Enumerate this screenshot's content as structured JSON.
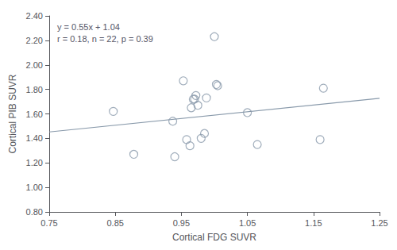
{
  "chart_data": {
    "type": "scatter",
    "xlabel": "Cortical FDG SUVR",
    "ylabel": "Cortical PIB SUVR",
    "annotations": [
      "y = 0.55x + 1.04",
      "r = 0.18, n = 22, p = 0.39"
    ],
    "series": [
      {
        "type": "scatter",
        "marker": "open circle",
        "color": "#8899aa",
        "x": [
          0.847,
          0.878,
          0.937,
          0.94,
          0.953,
          0.958,
          0.963,
          0.965,
          0.968,
          0.97,
          0.972,
          0.975,
          0.98,
          0.985,
          0.988,
          1.0,
          1.003,
          1.005,
          1.05,
          1.065,
          1.16,
          1.165
        ],
        "values": [
          1.62,
          1.27,
          1.54,
          1.25,
          1.87,
          1.39,
          1.34,
          1.65,
          1.72,
          1.72,
          1.75,
          1.67,
          1.4,
          1.44,
          1.73,
          2.23,
          1.84,
          1.83,
          1.61,
          1.35,
          1.39,
          1.81
        ]
      },
      {
        "type": "line",
        "line_style": "solid",
        "color": "#8899aa",
        "x": [
          0.75,
          1.25
        ],
        "values": [
          1.4525,
          1.7275
        ]
      }
    ],
    "xlim": [
      0.75,
      1.25
    ],
    "ylim": [
      0.8,
      2.4
    ],
    "xticks": [
      0.75,
      0.85,
      0.95,
      1.05,
      1.15,
      1.25
    ],
    "yticks": [
      {
        "value": 0.8,
        "label": "0.80"
      },
      {
        "value": 1.0,
        "label": "1.00"
      },
      {
        "value": 1.2,
        "label": "1.20"
      },
      {
        "value": 1.4,
        "label": "1.40"
      },
      {
        "value": 1.6,
        "label": "1.60"
      },
      {
        "value": 1.8,
        "label": "1.80"
      },
      {
        "value": 2.0,
        "label": "2.00"
      },
      {
        "value": 2.2,
        "label": "2.20"
      },
      {
        "value": 2.4,
        "label": "2.40"
      }
    ],
    "grid": false
  }
}
